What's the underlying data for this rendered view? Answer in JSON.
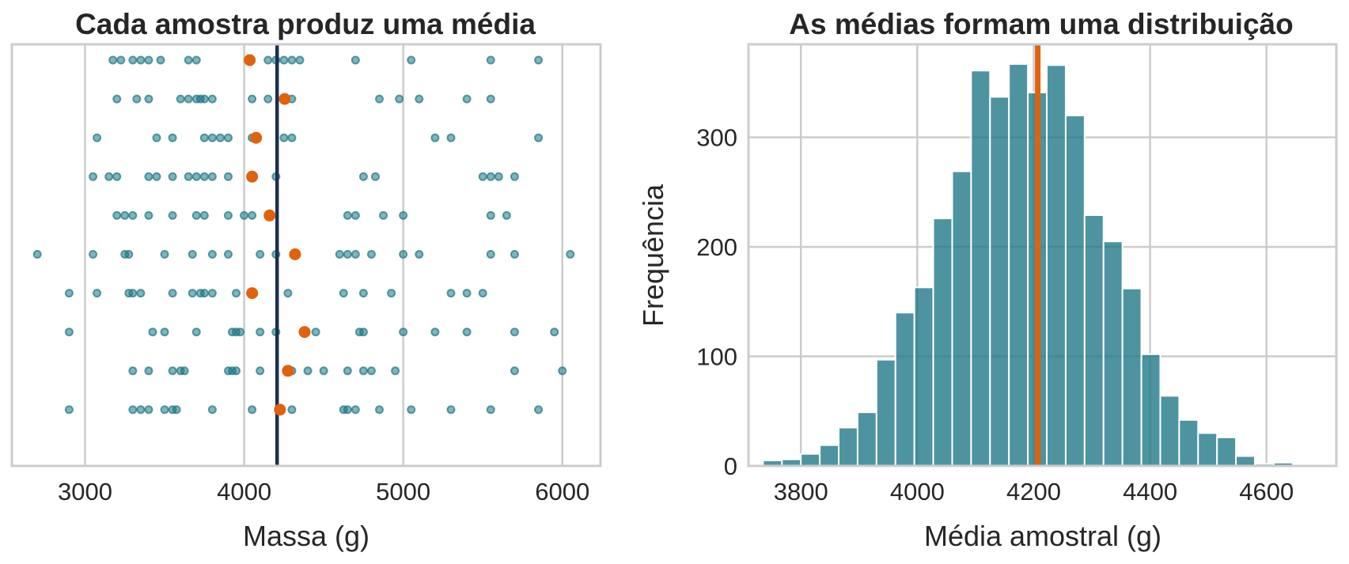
{
  "chart_data": [
    {
      "type": "scatter",
      "title": "Cada amostra produz uma média",
      "xlabel": "Massa (g)",
      "ylabel": "",
      "xlim": [
        2540,
        6240
      ],
      "x_ticks": [
        3000,
        4000,
        5000,
        6000
      ],
      "y_ticks": [],
      "grid": "vertical",
      "point_color": "#1b7685",
      "mean_color": "#e0620d",
      "reference_line_color": "#1c2f4f",
      "reference_value": 4207,
      "samples": [
        {
          "values": [
            3175,
            3225,
            3300,
            3350,
            3400,
            3475,
            3650,
            3700,
            4150,
            4200,
            4250,
            4300,
            4350,
            4700,
            5050,
            5550,
            5850
          ],
          "mean": 4035
        },
        {
          "values": [
            3200,
            3325,
            3400,
            3600,
            3650,
            3700,
            3725,
            3750,
            3800,
            4050,
            4150,
            4300,
            4850,
            4975,
            5100,
            5400,
            5550
          ],
          "mean": 4255
        },
        {
          "values": [
            3075,
            3450,
            3550,
            3750,
            3800,
            3850,
            3900,
            4050,
            4250,
            4300,
            5200,
            5300,
            5850
          ],
          "mean": 4075
        },
        {
          "values": [
            3050,
            3150,
            3200,
            3400,
            3450,
            3550,
            3650,
            3700,
            3750,
            3800,
            3900,
            4050,
            4200,
            4750,
            4825,
            5500,
            5550,
            5600,
            5700
          ],
          "mean": 4050
        },
        {
          "values": [
            3200,
            3250,
            3300,
            3400,
            3550,
            3700,
            3750,
            3900,
            4000,
            4050,
            4150,
            4650,
            4700,
            4875,
            5000,
            5550,
            5650
          ],
          "mean": 4160
        },
        {
          "values": [
            2700,
            3050,
            3250,
            3275,
            3500,
            3675,
            3800,
            3900,
            4100,
            4200,
            4600,
            4650,
            4700,
            4800,
            5000,
            5100,
            5550,
            5700,
            6050
          ],
          "mean": 4320
        },
        {
          "values": [
            2900,
            3075,
            3275,
            3300,
            3350,
            3550,
            3675,
            3725,
            3750,
            3800,
            3950,
            4050,
            4275,
            4625,
            4750,
            4925,
            5300,
            5400,
            5500
          ],
          "mean": 4050
        },
        {
          "values": [
            2900,
            3425,
            3500,
            3700,
            3925,
            3950,
            3975,
            4100,
            4200,
            4450,
            4725,
            4750,
            5000,
            5200,
            5400,
            5700,
            5950
          ],
          "mean": 4380
        },
        {
          "values": [
            3300,
            3400,
            3550,
            3600,
            3625,
            3900,
            3925,
            3950,
            4100,
            4300,
            4400,
            4500,
            4650,
            4750,
            4800,
            4950,
            5700,
            6000
          ],
          "mean": 4275
        },
        {
          "values": [
            2900,
            3300,
            3350,
            3400,
            3500,
            3550,
            3575,
            3800,
            4050,
            4300,
            4625,
            4650,
            4700,
            4850,
            5050,
            5300,
            5550,
            5850
          ],
          "mean": 4225
        }
      ]
    },
    {
      "type": "bar",
      "title": "As médias formam uma distribuição",
      "xlabel": "Média amostral (g)",
      "ylabel": "Frequência",
      "xlim": [
        3710,
        4720
      ],
      "ylim": [
        0,
        385
      ],
      "x_ticks": [
        3800,
        4000,
        4200,
        4400,
        4600
      ],
      "y_ticks": [
        0,
        100,
        200,
        300
      ],
      "grid": "both",
      "bar_color": "#1b7685",
      "vline_color": "#e0620d",
      "vline_value": 4207,
      "bin_start": 3735,
      "bin_width": 32.5,
      "values": [
        5,
        6,
        11,
        19,
        35,
        49,
        97,
        140,
        163,
        226,
        269,
        361,
        337,
        367,
        341,
        366,
        320,
        229,
        205,
        162,
        102,
        64,
        42,
        30,
        26,
        9,
        2,
        3
      ]
    }
  ]
}
